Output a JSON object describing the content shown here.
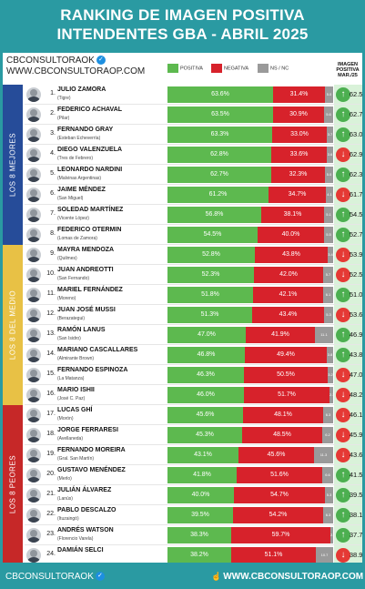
{
  "header": {
    "title_line1": "RANKING DE IMAGEN POSITIVA",
    "title_line2": "INTENDENTES GBA - ABRIL 2025"
  },
  "brand": {
    "name": "CBCONSULTORAOK",
    "url": "WWW.CBCONSULTORAOP.COM",
    "verified_glyph": "✓",
    "verified_icon": "verified-check-icon"
  },
  "legend": {
    "positive": "POSITIVA",
    "negative": "NEGATIVA",
    "ns": "NS / NC"
  },
  "prev_header": [
    "IMAGEN",
    "POSITIVA",
    "MAR./25"
  ],
  "groups": [
    "LOS 8 MEJORES",
    "LOS 8 DEL MEDIO",
    "LOS 8 PEORES"
  ],
  "colors": {
    "positive": "#5db94f",
    "negative": "#d7222b",
    "ns": "#9a9a9a",
    "arrow_up": "#4caf50",
    "arrow_down": "#e53935",
    "group_best": "#264c99",
    "group_mid": "#e8c145",
    "group_worst": "#c62828",
    "frame": "#2a9aa2"
  },
  "footer": {
    "brand": "CBCONSULTORAOK",
    "url": "WWW.CBCONSULTORAOP.COM",
    "cursor_icon": "hand-pointer-icon"
  },
  "chart_data": {
    "type": "bar",
    "title": "RANKING DE IMAGEN POSITIVA INTENDENTES GBA - ABRIL 2025",
    "series_names": [
      "POSITIVA",
      "NEGATIVA",
      "NS / NC",
      "IMAGEN POSITIVA MAR./25"
    ],
    "rows": [
      {
        "rank": "1.",
        "name": "JULIO ZAMORA",
        "district": "(Tigre)",
        "pos": 63.6,
        "neg": 31.4,
        "ns": 5.0,
        "ns_label": "5.0",
        "pos_label": "63.6%",
        "neg_label": "31.4%",
        "trend": "up",
        "prev": 62.5,
        "prev_label": "62.5%"
      },
      {
        "rank": "2.",
        "name": "FEDERICO ACHAVAL",
        "district": "(Pilar)",
        "pos": 63.5,
        "neg": 30.9,
        "ns": 5.6,
        "ns_label": "5.6",
        "pos_label": "63.5%",
        "neg_label": "30.9%",
        "trend": "up",
        "prev": 62.7,
        "prev_label": "62.7%"
      },
      {
        "rank": "3.",
        "name": "FERNANDO GRAY",
        "district": "(Esteban Echeverría)",
        "pos": 63.3,
        "neg": 33.0,
        "ns": 3.7,
        "ns_label": "3.7",
        "pos_label": "63.3%",
        "neg_label": "33.0%",
        "trend": "up",
        "prev": 63.0,
        "prev_label": "63.0%"
      },
      {
        "rank": "4.",
        "name": "DIEGO VALENZUELA",
        "district": "(Tres de Febrero)",
        "pos": 62.8,
        "neg": 33.6,
        "ns": 3.6,
        "ns_label": "3.6",
        "pos_label": "62.8%",
        "neg_label": "33.6%",
        "trend": "down",
        "prev": 62.9,
        "prev_label": "62.9%"
      },
      {
        "rank": "5.",
        "name": "LEONARDO NARDINI",
        "district": "(Malvinas Argentinas)",
        "pos": 62.7,
        "neg": 32.3,
        "ns": 5.0,
        "ns_label": "5.0",
        "pos_label": "62.7%",
        "neg_label": "32.3%",
        "trend": "up",
        "prev": 62.3,
        "prev_label": "62.3%"
      },
      {
        "rank": "6.",
        "name": "JAIME MÉNDEZ",
        "district": "(San Miguel)",
        "pos": 61.2,
        "neg": 34.7,
        "ns": 4.1,
        "ns_label": "4.1",
        "pos_label": "61.2%",
        "neg_label": "34.7%",
        "trend": "down",
        "prev": 61.7,
        "prev_label": "61.7%"
      },
      {
        "rank": "7.",
        "name": "SOLEDAD MARTÍNEZ",
        "district": "(Vicente López)",
        "pos": 56.8,
        "neg": 38.1,
        "ns": 5.1,
        "ns_label": "5.1",
        "pos_label": "56.8%",
        "neg_label": "38.1%",
        "trend": "up",
        "prev": 54.5,
        "prev_label": "54.5%"
      },
      {
        "rank": "8.",
        "name": "FEDERICO OTERMIN",
        "district": "(Lomas de Zamora)",
        "pos": 54.5,
        "neg": 40.0,
        "ns": 5.5,
        "ns_label": "5.5",
        "pos_label": "54.5%",
        "neg_label": "40.0%",
        "trend": "up",
        "prev": 52.7,
        "prev_label": "52.7%"
      },
      {
        "rank": "9.",
        "name": "MAYRA MENDOZA",
        "district": "(Quilmes)",
        "pos": 52.8,
        "neg": 43.8,
        "ns": 3.4,
        "ns_label": "3.4",
        "pos_label": "52.8%",
        "neg_label": "43.8%",
        "trend": "down",
        "prev": 53.9,
        "prev_label": "53.9%"
      },
      {
        "rank": "10.",
        "name": "JUAN ANDREOTTI",
        "district": "(San Fernando)",
        "pos": 52.3,
        "neg": 42.0,
        "ns": 5.7,
        "ns_label": "5.7",
        "pos_label": "52.3%",
        "neg_label": "42.0%",
        "trend": "down",
        "prev": 52.5,
        "prev_label": "52.5%"
      },
      {
        "rank": "11.",
        "name": "MARIEL FERNÁNDEZ",
        "district": "(Moreno)",
        "pos": 51.8,
        "neg": 42.1,
        "ns": 6.1,
        "ns_label": "6.1",
        "pos_label": "51.8%",
        "neg_label": "42.1%",
        "trend": "up",
        "prev": 51.0,
        "prev_label": "51.0%"
      },
      {
        "rank": "12.",
        "name": "JUAN JOSÉ MUSSI",
        "district": "(Berazategui)",
        "pos": 51.3,
        "neg": 43.4,
        "ns": 5.3,
        "ns_label": "5.3",
        "pos_label": "51.3%",
        "neg_label": "43.4%",
        "trend": "down",
        "prev": 53.6,
        "prev_label": "53.6%"
      },
      {
        "rank": "13.",
        "name": "RAMÓN LANUS",
        "district": "(San Isidro)",
        "pos": 47.0,
        "neg": 41.9,
        "ns": 11.1,
        "ns_label": "11.1",
        "pos_label": "47.0%",
        "neg_label": "41.9%",
        "trend": "up",
        "prev": 46.9,
        "prev_label": "46.9%"
      },
      {
        "rank": "14.",
        "name": "MARIANO CASCALLARES",
        "district": "(Almirante Brown)",
        "pos": 46.8,
        "neg": 49.4,
        "ns": 3.8,
        "ns_label": "3.8",
        "pos_label": "46.8%",
        "neg_label": "49.4%",
        "trend": "up",
        "prev": 43.8,
        "prev_label": "43.8%"
      },
      {
        "rank": "15.",
        "name": "FERNANDO ESPINOZA",
        "district": "(La Matanza)",
        "pos": 46.3,
        "neg": 50.5,
        "ns": 3.2,
        "ns_label": "3.2",
        "pos_label": "46.3%",
        "neg_label": "50.5%",
        "trend": "down",
        "prev": 47.0,
        "prev_label": "47.0%"
      },
      {
        "rank": "16.",
        "name": "MARIO ISHII",
        "district": "(José C. Paz)",
        "pos": 46.0,
        "neg": 51.7,
        "ns": 2.3,
        "ns_label": "2.3",
        "pos_label": "46.0%",
        "neg_label": "51.7%",
        "trend": "down",
        "prev": 48.2,
        "prev_label": "48.2%"
      },
      {
        "rank": "17.",
        "name": "LUCAS GHÍ",
        "district": "(Morón)",
        "pos": 45.6,
        "neg": 48.1,
        "ns": 6.3,
        "ns_label": "6.3",
        "pos_label": "45.6%",
        "neg_label": "48.1%",
        "trend": "down",
        "prev": 46.1,
        "prev_label": "46.1%"
      },
      {
        "rank": "18.",
        "name": "JORGE FERRARESI",
        "district": "(Avellaneda)",
        "pos": 45.3,
        "neg": 48.5,
        "ns": 6.2,
        "ns_label": "6.2",
        "pos_label": "45.3%",
        "neg_label": "48.5%",
        "trend": "down",
        "prev": 45.9,
        "prev_label": "45.9%"
      },
      {
        "rank": "19.",
        "name": "FERNANDO MOREIRA",
        "district": "(Gral. San Martín)",
        "pos": 43.1,
        "neg": 45.6,
        "ns": 11.3,
        "ns_label": "11.3",
        "pos_label": "43.1%",
        "neg_label": "45.6%",
        "trend": "down",
        "prev": 43.6,
        "prev_label": "43.6%"
      },
      {
        "rank": "20.",
        "name": "GUSTAVO MENÉNDEZ",
        "district": "(Merlo)",
        "pos": 41.8,
        "neg": 51.6,
        "ns": 6.6,
        "ns_label": "6.6",
        "pos_label": "41.8%",
        "neg_label": "51.6%",
        "trend": "up",
        "prev": 41.5,
        "prev_label": "41.5%"
      },
      {
        "rank": "21.",
        "name": "JULIÁN ÁLVAREZ",
        "district": "(Lanús)",
        "pos": 40.0,
        "neg": 54.7,
        "ns": 5.3,
        "ns_label": "5.3",
        "pos_label": "40.0%",
        "neg_label": "54.7%",
        "trend": "up",
        "prev": 39.5,
        "prev_label": "39.5%"
      },
      {
        "rank": "22.",
        "name": "PABLO DESCALZO",
        "district": "(Ituzaingó)",
        "pos": 39.5,
        "neg": 54.2,
        "ns": 6.3,
        "ns_label": "6.3",
        "pos_label": "39.5%",
        "neg_label": "54.2%",
        "trend": "up",
        "prev": 38.1,
        "prev_label": "38.1%"
      },
      {
        "rank": "23.",
        "name": "ANDRÉS WATSON",
        "district": "(Florencio Varela)",
        "pos": 38.3,
        "neg": 59.7,
        "ns": 2.0,
        "ns_label": "2.0",
        "pos_label": "38.3%",
        "neg_label": "59.7%",
        "trend": "up",
        "prev": 37.7,
        "prev_label": "37.7%"
      },
      {
        "rank": "24.",
        "name": "DAMIÁN SELCI",
        "district": "",
        "pos": 38.2,
        "neg": 51.1,
        "ns": 10.7,
        "ns_label": "10.7",
        "pos_label": "38.2%",
        "neg_label": "51.1%",
        "trend": "down",
        "prev": 38.9,
        "prev_label": "38.9%"
      }
    ]
  }
}
